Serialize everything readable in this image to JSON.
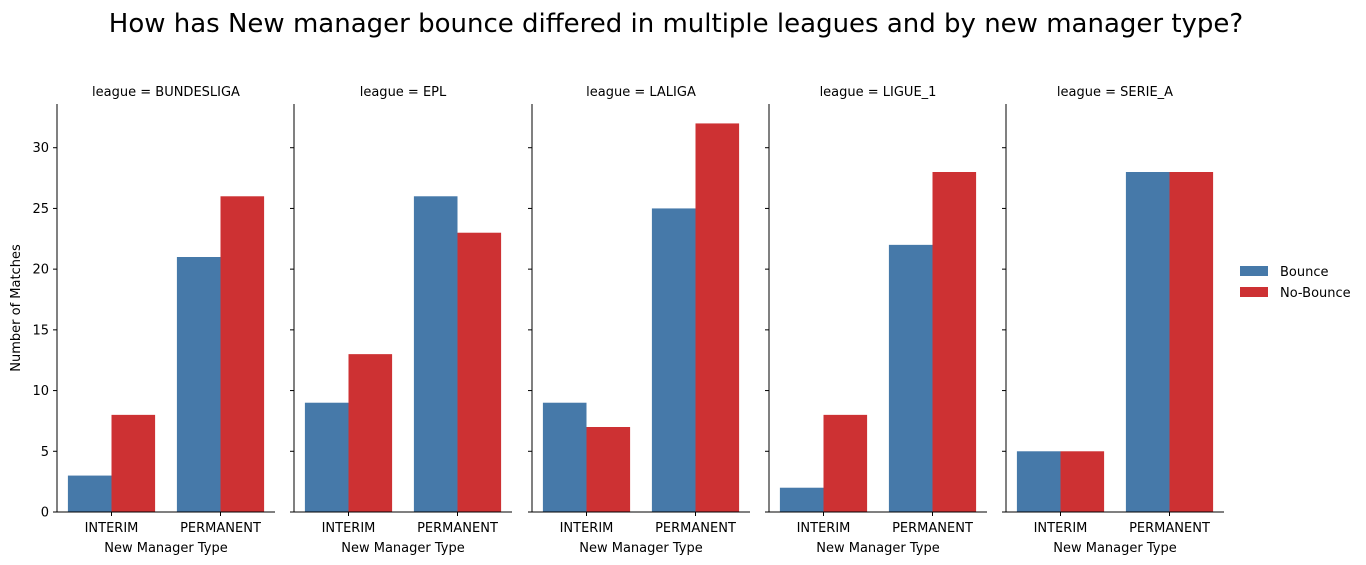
{
  "chart_data": {
    "type": "bar",
    "title": "How has New manager bounce differed in multiple leagues and by new manager type?",
    "xlabel": "New Manager Type",
    "ylabel": "Number of Matches",
    "ylim": [
      0,
      33.6
    ],
    "yticks": [
      0,
      5,
      10,
      15,
      20,
      25,
      30
    ],
    "categories": [
      "INTERIM",
      "PERMANENT"
    ],
    "legend_placement": "right",
    "grid": false,
    "colors": {
      "Bounce": "#4679a9",
      "No-Bounce": "#cd3133"
    },
    "panels": [
      {
        "title": "league = BUNDESLIGA",
        "series": [
          {
            "name": "Bounce",
            "values": [
              3,
              21
            ]
          },
          {
            "name": "No-Bounce",
            "values": [
              8,
              26
            ]
          }
        ]
      },
      {
        "title": "league = EPL",
        "series": [
          {
            "name": "Bounce",
            "values": [
              9,
              26
            ]
          },
          {
            "name": "No-Bounce",
            "values": [
              13,
              23
            ]
          }
        ]
      },
      {
        "title": "league = LALIGA",
        "series": [
          {
            "name": "Bounce",
            "values": [
              9,
              25
            ]
          },
          {
            "name": "No-Bounce",
            "values": [
              7,
              32
            ]
          }
        ]
      },
      {
        "title": "league = LIGUE_1",
        "series": [
          {
            "name": "Bounce",
            "values": [
              2,
              22
            ]
          },
          {
            "name": "No-Bounce",
            "values": [
              8,
              28
            ]
          }
        ]
      },
      {
        "title": "league = SERIE_A",
        "series": [
          {
            "name": "Bounce",
            "values": [
              5,
              28
            ]
          },
          {
            "name": "No-Bounce",
            "values": [
              5,
              28
            ]
          }
        ]
      }
    ]
  }
}
